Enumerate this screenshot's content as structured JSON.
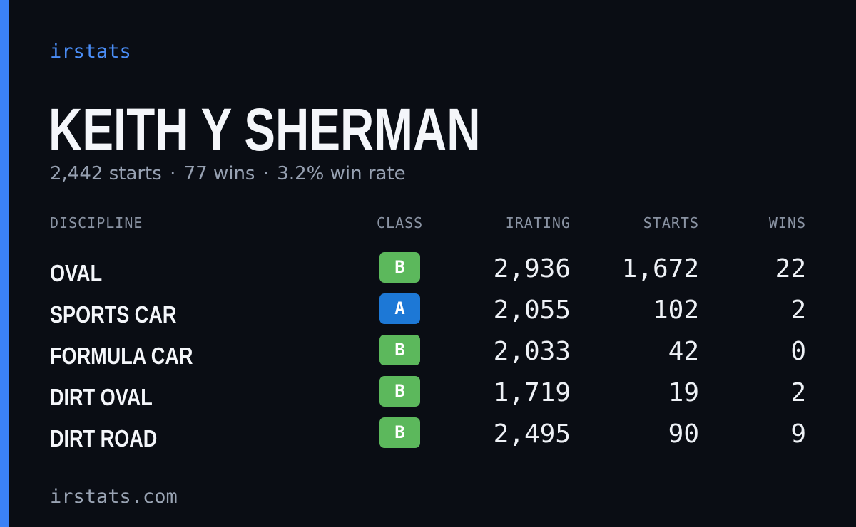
{
  "brand": "irstats",
  "player": {
    "name": "KEITH Y SHERMAN",
    "starts_text": "2,442 starts",
    "separator": "·",
    "wins_text": "77 wins",
    "win_rate_text": "3.2% win rate"
  },
  "table": {
    "headers": {
      "discipline": "DISCIPLINE",
      "class": "CLASS",
      "irating": "IRATING",
      "starts": "STARTS",
      "wins": "WINS"
    },
    "rows": [
      {
        "discipline": "OVAL",
        "class": "B",
        "irating": "2,936",
        "starts": "1,672",
        "wins": "22"
      },
      {
        "discipline": "SPORTS CAR",
        "class": "A",
        "irating": "2,055",
        "starts": "102",
        "wins": "2"
      },
      {
        "discipline": "FORMULA CAR",
        "class": "B",
        "irating": "2,033",
        "starts": "42",
        "wins": "0"
      },
      {
        "discipline": "DIRT OVAL",
        "class": "B",
        "irating": "1,719",
        "starts": "19",
        "wins": "2"
      },
      {
        "discipline": "DIRT ROAD",
        "class": "B",
        "irating": "2,495",
        "starts": "90",
        "wins": "9"
      }
    ]
  },
  "footer": {
    "domain": "irstats.com"
  },
  "colors": {
    "accent": "#3b82f6",
    "background": "#0a0d14",
    "class_a": "#1d78d6",
    "class_b": "#5cb85c"
  }
}
